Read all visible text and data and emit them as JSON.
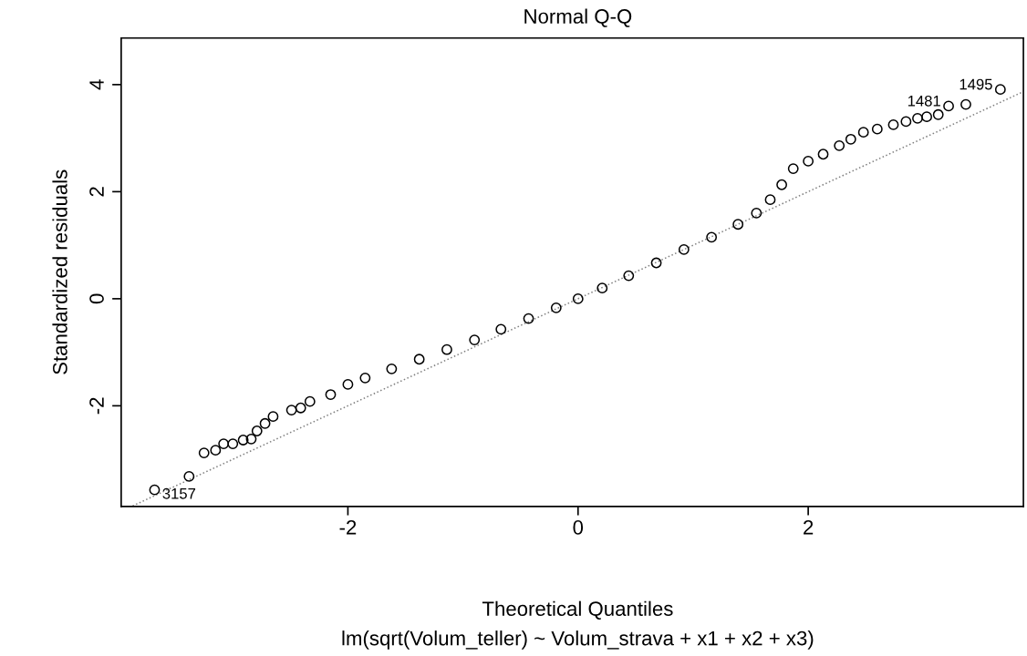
{
  "chart_data": {
    "type": "scatter",
    "title": "Normal Q-Q",
    "xlabel": "Theoretical Quantiles",
    "subtitle": "lm(sqrt(Volum_teller) ~ Volum_strava + x1 + x2 + x3)",
    "ylabel": "Standardized residuals",
    "xlim": [
      -3.97,
      3.87
    ],
    "ylim": [
      -3.88,
      4.87
    ],
    "xticks": [
      -2,
      0,
      2
    ],
    "yticks": [
      -2,
      0,
      2,
      4
    ],
    "grid": false,
    "series": [
      {
        "color": "#000000",
        "marker": "circle",
        "x": [
          -3.68,
          -3.38,
          -3.25,
          -3.15,
          -3.08,
          -3.0,
          -2.91,
          -2.84,
          -2.79,
          -2.72,
          -2.65,
          -2.49,
          -2.41,
          -2.33,
          -2.15,
          -2.0,
          -1.85,
          -1.62,
          -1.38,
          -1.14,
          -0.9,
          -0.67,
          -0.43,
          -0.19,
          0,
          0.21,
          0.44,
          0.68,
          0.92,
          1.16,
          1.39,
          1.55,
          1.67,
          1.77,
          1.87,
          2.0,
          2.13,
          2.27,
          2.37,
          2.48,
          2.6,
          2.74,
          2.85,
          2.95,
          3.03,
          3.13,
          3.22,
          3.37,
          3.67
        ],
        "values": [
          -3.57,
          -3.32,
          -2.88,
          -2.83,
          -2.71,
          -2.71,
          -2.64,
          -2.62,
          -2.47,
          -2.33,
          -2.2,
          -2.08,
          -2.04,
          -1.92,
          -1.79,
          -1.6,
          -1.48,
          -1.31,
          -1.13,
          -0.95,
          -0.77,
          -0.57,
          -0.37,
          -0.17,
          0,
          0.2,
          0.43,
          0.67,
          0.92,
          1.15,
          1.39,
          1.6,
          1.85,
          2.13,
          2.43,
          2.57,
          2.7,
          2.86,
          2.98,
          3.11,
          3.17,
          3.25,
          3.31,
          3.37,
          3.4,
          3.44,
          3.6,
          3.63,
          3.91
        ]
      },
      {
        "type": "line",
        "color": "#808080",
        "marker": "none",
        "line_style": "dotted",
        "x": [
          -3.87,
          3.86
        ],
        "values": [
          -3.87,
          3.86
        ]
      }
    ],
    "annotations": [
      {
        "text": "3157",
        "x": -3.68,
        "y": -3.57
      },
      {
        "text": "1481",
        "x": 3.22,
        "y": 3.6
      },
      {
        "text": "1495",
        "x": 3.67,
        "y": 3.91
      }
    ]
  }
}
